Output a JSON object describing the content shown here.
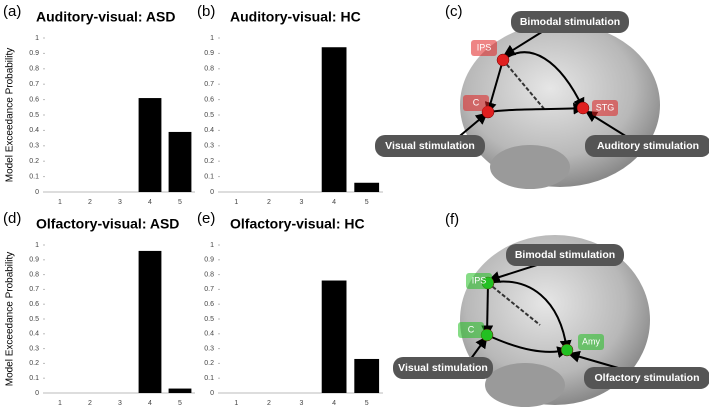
{
  "chart_data": [
    {
      "type": "bar",
      "label": "(a)",
      "title": "Auditory-visual: ASD",
      "y_label": "Model Exceedance Probability",
      "categories": [
        "1",
        "2",
        "3",
        "4",
        "5"
      ],
      "values": [
        0,
        0,
        0,
        0.61,
        0.39
      ],
      "color": "#000000",
      "ylim": [
        0,
        1
      ],
      "yticks": [
        0,
        0.1,
        0.2,
        0.3,
        0.4,
        0.5,
        0.6,
        0.7,
        0.8,
        0.9,
        1
      ]
    },
    {
      "type": "bar",
      "label": "(b)",
      "title": "Auditory-visual: HC",
      "categories": [
        "1",
        "2",
        "3",
        "4",
        "5"
      ],
      "values": [
        0,
        0,
        0,
        0.94,
        0.06
      ],
      "color": "#000000",
      "ylim": [
        0,
        1
      ],
      "yticks": [
        0,
        0.1,
        0.2,
        0.3,
        0.4,
        0.5,
        0.6,
        0.7,
        0.8,
        0.9,
        1
      ]
    },
    {
      "type": "bar",
      "label": "(d)",
      "title": "Olfactory-visual: ASD",
      "y_label": "Model Exceedance Probability",
      "categories": [
        "1",
        "2",
        "3",
        "4",
        "5"
      ],
      "values": [
        0,
        0,
        0,
        0.96,
        0.03
      ],
      "color": "#000000",
      "ylim": [
        0,
        1
      ],
      "yticks": [
        0,
        0.1,
        0.2,
        0.3,
        0.4,
        0.5,
        0.6,
        0.7,
        0.8,
        0.9,
        1
      ]
    },
    {
      "type": "bar",
      "label": "(e)",
      "title": "Olfactory-visual: HC",
      "categories": [
        "1",
        "2",
        "3",
        "4",
        "5"
      ],
      "values": [
        0,
        0,
        0,
        0.76,
        0.23
      ],
      "color": "#000000",
      "ylim": [
        0,
        1
      ],
      "yticks": [
        0,
        0.1,
        0.2,
        0.3,
        0.4,
        0.5,
        0.6,
        0.7,
        0.8,
        0.9,
        1
      ]
    }
  ],
  "diagrams": [
    {
      "label": "(c)",
      "node_color": "#e02020",
      "nodes": [
        "IPS",
        "C",
        "STG"
      ],
      "stimuli": [
        "Bimodal stimulation",
        "Visual stimulation",
        "Auditory stimulation"
      ]
    },
    {
      "label": "(f)",
      "node_color": "#22c022",
      "nodes": [
        "IPS",
        "C",
        "Amy"
      ],
      "stimuli": [
        "Bimodal stimulation",
        "Visual stimulation",
        "Olfactory stimulation"
      ]
    }
  ]
}
